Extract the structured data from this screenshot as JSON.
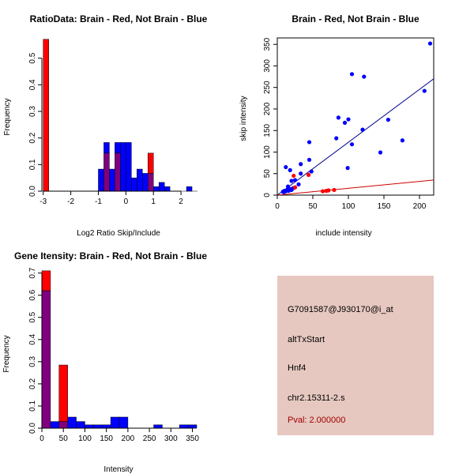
{
  "chart_data": [
    {
      "type": "bar",
      "title": "RatioData: Brain - Red, Not Brain - Blue",
      "xlabel": "Log2 Ratio Skip/Include",
      "ylabel": "Frequency",
      "xlim": [
        -3.05,
        2.6
      ],
      "ylim": [
        0,
        0.6
      ],
      "xticks": [
        "-3",
        "-2",
        "-1",
        "0",
        "1",
        "2"
      ],
      "yticks": [
        "0.0",
        "0.1",
        "0.2",
        "0.3",
        "0.4",
        "0.5"
      ],
      "bin_width": 0.2,
      "series": [
        {
          "name": "Not Brain",
          "color": "#0000ff",
          "bins": [
            [
              -1.0,
              0.083
            ],
            [
              -0.8,
              0.183
            ],
            [
              -0.6,
              0.083
            ],
            [
              -0.4,
              0.183
            ],
            [
              -0.2,
              0.183
            ],
            [
              0.0,
              0.183
            ],
            [
              0.2,
              0.05
            ],
            [
              0.4,
              0.083
            ],
            [
              0.6,
              0.067
            ],
            [
              0.8,
              0.067
            ],
            [
              1.0,
              0.017
            ],
            [
              1.2,
              0.033
            ],
            [
              1.4,
              0.017
            ],
            [
              1.6,
              0.0
            ],
            [
              1.8,
              0.0
            ],
            [
              2.0,
              0.0
            ],
            [
              2.2,
              0.017
            ]
          ]
        },
        {
          "name": "Brain",
          "color": "#ff0000",
          "bins": [
            [
              -3.0,
              0.571
            ],
            [
              -0.8,
              0.143
            ],
            [
              -0.4,
              0.143
            ],
            [
              0.2,
              0.0
            ],
            [
              0.8,
              0.143
            ]
          ]
        }
      ],
      "overlap_color": "#800080"
    },
    {
      "type": "scatter",
      "title": "Brain - Red, Not Brain - Blue",
      "xlabel": "include intensity",
      "ylabel": "skip intensity",
      "xlim": [
        0,
        220
      ],
      "ylim": [
        0,
        365
      ],
      "xticks": [
        "0",
        "50",
        "100",
        "150",
        "200"
      ],
      "yticks": [
        "0",
        "50",
        "100",
        "150",
        "200",
        "250",
        "300",
        "350"
      ],
      "series": [
        {
          "name": "Not Brain",
          "color": "#0000ff",
          "points": [
            [
              215,
              352
            ],
            [
              105,
              281
            ],
            [
              122,
              275
            ],
            [
              207,
              242
            ],
            [
              86,
              180
            ],
            [
              100,
              176
            ],
            [
              95,
              168
            ],
            [
              156,
              175
            ],
            [
              120,
              152
            ],
            [
              83,
              132
            ],
            [
              176,
              127
            ],
            [
              105,
              118
            ],
            [
              145,
              99
            ],
            [
              45,
              123
            ],
            [
              33,
              72
            ],
            [
              45,
              82
            ],
            [
              99,
              63
            ],
            [
              48,
              55
            ],
            [
              12,
              65
            ],
            [
              18,
              58
            ],
            [
              20,
              33
            ],
            [
              25,
              35
            ],
            [
              30,
              25
            ],
            [
              33,
              50
            ],
            [
              15,
              20
            ],
            [
              14,
              12
            ],
            [
              10,
              10
            ],
            [
              8,
              8
            ],
            [
              12,
              9
            ],
            [
              16,
              10
            ],
            [
              20,
              12
            ],
            [
              22,
              16
            ],
            [
              25,
              18
            ],
            [
              18,
              14
            ],
            [
              13,
              11
            ],
            [
              9,
              7
            ]
          ]
        },
        {
          "name": "Brain",
          "color": "#ff0000",
          "points": [
            [
              23,
              45
            ],
            [
              44,
              47
            ],
            [
              64,
              9
            ],
            [
              69,
              10
            ],
            [
              72,
              11
            ],
            [
              80,
              12
            ],
            [
              25,
              18
            ]
          ]
        }
      ],
      "fit_lines": [
        {
          "name": "Not Brain fit",
          "color": "#00008b",
          "from": [
            0,
            0
          ],
          "to": [
            220,
            270
          ]
        },
        {
          "name": "Brain fit",
          "color": "#cc0000",
          "from": [
            0,
            0
          ],
          "to": [
            220,
            35
          ]
        }
      ]
    },
    {
      "type": "bar",
      "title": "Gene Itensity: Brain - Red, Not Brain - Blue",
      "xlabel": "Intensity",
      "ylabel": "Frequency",
      "xlim": [
        0,
        360
      ],
      "ylim": [
        0,
        0.72
      ],
      "xticks": [
        "0",
        "50",
        "100",
        "150",
        "200",
        "250",
        "300",
        "350"
      ],
      "yticks": [
        "0.0",
        "0.1",
        "0.2",
        "0.3",
        "0.4",
        "0.5",
        "0.6",
        "0.7"
      ],
      "bin_width": 20,
      "series": [
        {
          "name": "Not Brain",
          "color": "#0000ff",
          "bins": [
            [
              0,
              0.62
            ],
            [
              20,
              0.03
            ],
            [
              40,
              0.03
            ],
            [
              60,
              0.05
            ],
            [
              80,
              0.03
            ],
            [
              100,
              0.015
            ],
            [
              120,
              0.015
            ],
            [
              140,
              0.015
            ],
            [
              160,
              0.05
            ],
            [
              180,
              0.05
            ],
            [
              200,
              0.0
            ],
            [
              220,
              0.0
            ],
            [
              240,
              0.0
            ],
            [
              260,
              0.015
            ],
            [
              280,
              0.0
            ],
            [
              300,
              0.0
            ],
            [
              320,
              0.015
            ],
            [
              340,
              0.015
            ]
          ]
        },
        {
          "name": "Brain",
          "color": "#ff0000",
          "bins": [
            [
              0,
              0.71
            ],
            [
              20,
              0.0
            ],
            [
              40,
              0.285
            ]
          ]
        }
      ],
      "overlap_color": "#800080"
    }
  ],
  "info_panel": {
    "background": "#e6c8c0",
    "probe_id": "G7091587@J930170@i_at",
    "event_type": "altTxStart",
    "gene": "Hnf4",
    "locus": "chr2.15311-2.s",
    "pval": "Pval: 2.000000",
    "pval_color": "#a00000"
  }
}
